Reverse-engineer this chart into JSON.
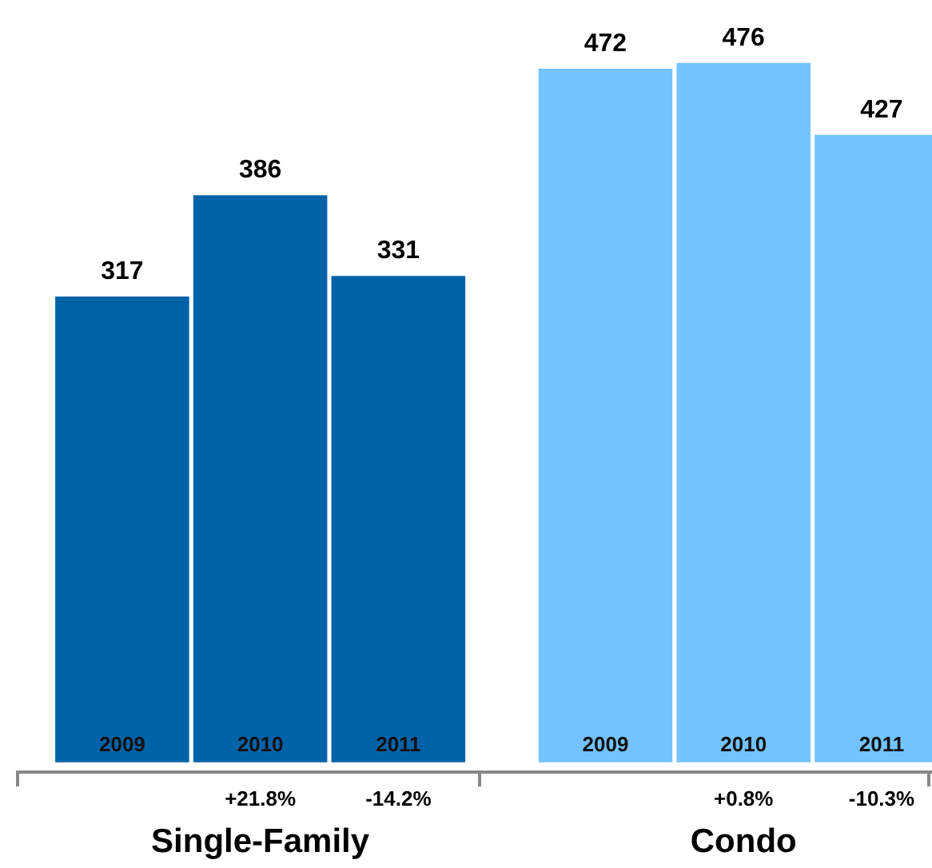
{
  "chart_data": {
    "type": "bar",
    "categories": [
      "2009",
      "2010",
      "2011",
      "2009",
      "2010",
      "2011"
    ],
    "values": [
      317,
      386,
      331,
      472,
      476,
      427
    ],
    "colors": [
      "#0063a8",
      "#0063a8",
      "#0063a8",
      "#72c3ff",
      "#72c3ff",
      "#72c3ff"
    ],
    "data_labels": true,
    "annotations": [
      "Single-Family",
      "Condo",
      "+21.8%",
      "-14.2%",
      "+0.8%",
      "-10.3%"
    ]
  }
}
